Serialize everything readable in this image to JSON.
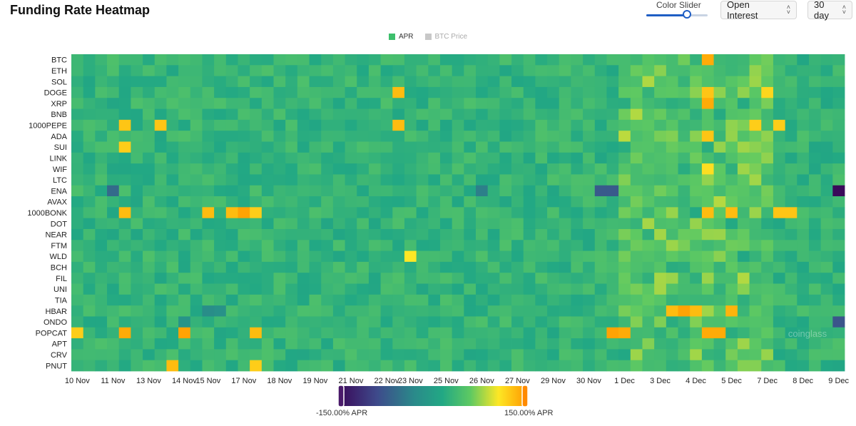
{
  "page": {
    "title": "Funding Rate Heatmap"
  },
  "controls": {
    "color_slider": {
      "label": "Color Slider",
      "value": 0.66
    },
    "metric_select": {
      "value": "Open Interest"
    },
    "period_select": {
      "value": "30 day"
    }
  },
  "legend": {
    "items": [
      {
        "label": "APR",
        "color": "#3dbf6c",
        "active": true
      },
      {
        "label": "BTC Price",
        "color": "#c8c8c8",
        "active": false
      }
    ]
  },
  "colorbar": {
    "min_label": "-150.00% APR",
    "max_label": "150.00% APR",
    "min": -150,
    "max": 150
  },
  "chart_data": {
    "type": "heatmap",
    "title": "Funding Rate Heatmap",
    "value_unit": "% APR",
    "color_scale": [
      "#3a0a5a",
      "#3e4a8b",
      "#2a8a8a",
      "#22a884",
      "#5ec962",
      "#fde725",
      "#ff9a00"
    ],
    "vmin": -150,
    "vmax": 150,
    "rows": [
      "BTC",
      "ETH",
      "SOL",
      "DOGE",
      "XRP",
      "BNB",
      "1000PEPE",
      "ADA",
      "SUI",
      "LINK",
      "WIF",
      "LTC",
      "ENA",
      "AVAX",
      "1000BONK",
      "DOT",
      "NEAR",
      "FTM",
      "WLD",
      "BCH",
      "FIL",
      "UNI",
      "TIA",
      "HBAR",
      "ONDO",
      "POPCAT",
      "APT",
      "CRV",
      "PNUT"
    ],
    "x_tick_labels": [
      "10 Nov",
      "11 Nov",
      "13 Nov",
      "14 Nov",
      "15 Nov",
      "17 Nov",
      "18 Nov",
      "19 Nov",
      "21 Nov",
      "22 Nov",
      "23 Nov",
      "25 Nov",
      "26 Nov",
      "27 Nov",
      "29 Nov",
      "30 Nov",
      "1 Dec",
      "3 Dec",
      "4 Dec",
      "5 Dec",
      "7 Dec",
      "8 Dec",
      "9 Dec"
    ],
    "x_tick_positions": [
      0,
      3,
      6,
      9,
      11,
      14,
      17,
      20,
      23,
      26,
      28,
      31,
      34,
      37,
      40,
      43,
      46,
      49,
      52,
      55,
      58,
      61,
      64
    ],
    "n_columns": 65,
    "base_apr": 30,
    "hotspots": [
      {
        "row": "BTC",
        "col": 53,
        "apr": 140
      },
      {
        "row": "DOGE",
        "col": 27,
        "apr": 130
      },
      {
        "row": "DOGE",
        "col": 53,
        "apr": 125
      },
      {
        "row": "DOGE",
        "col": 58,
        "apr": 115
      },
      {
        "row": "XRP",
        "col": 53,
        "apr": 140
      },
      {
        "row": "1000PEPE",
        "col": 4,
        "apr": 125
      },
      {
        "row": "1000PEPE",
        "col": 7,
        "apr": 125
      },
      {
        "row": "1000PEPE",
        "col": 27,
        "apr": 130
      },
      {
        "row": "1000PEPE",
        "col": 57,
        "apr": 120
      },
      {
        "row": "1000PEPE",
        "col": 59,
        "apr": 120
      },
      {
        "row": "ADA",
        "col": 53,
        "apr": 125
      },
      {
        "row": "SUI",
        "col": 4,
        "apr": 120
      },
      {
        "row": "WIF",
        "col": 53,
        "apr": 110
      },
      {
        "row": "ENA",
        "col": 3,
        "apr": -60
      },
      {
        "row": "ENA",
        "col": 34,
        "apr": -40
      },
      {
        "row": "ENA",
        "col": 44,
        "apr": -75
      },
      {
        "row": "ENA",
        "col": 45,
        "apr": -75
      },
      {
        "row": "ENA",
        "col": 64,
        "apr": -150
      },
      {
        "row": "1000BONK",
        "col": 4,
        "apr": 130
      },
      {
        "row": "1000BONK",
        "col": 11,
        "apr": 130
      },
      {
        "row": "1000BONK",
        "col": 13,
        "apr": 130
      },
      {
        "row": "1000BONK",
        "col": 14,
        "apr": 145
      },
      {
        "row": "1000BONK",
        "col": 15,
        "apr": 120
      },
      {
        "row": "1000BONK",
        "col": 53,
        "apr": 130
      },
      {
        "row": "1000BONK",
        "col": 55,
        "apr": 130
      },
      {
        "row": "1000BONK",
        "col": 59,
        "apr": 125
      },
      {
        "row": "1000BONK",
        "col": 60,
        "apr": 125
      },
      {
        "row": "WLD",
        "col": 28,
        "apr": 105
      },
      {
        "row": "HBAR",
        "col": 11,
        "apr": -25
      },
      {
        "row": "HBAR",
        "col": 12,
        "apr": -20
      },
      {
        "row": "HBAR",
        "col": 50,
        "apr": 130
      },
      {
        "row": "HBAR",
        "col": 51,
        "apr": 145
      },
      {
        "row": "HBAR",
        "col": 52,
        "apr": 130
      },
      {
        "row": "HBAR",
        "col": 55,
        "apr": 135
      },
      {
        "row": "ONDO",
        "col": 9,
        "apr": -15
      },
      {
        "row": "ONDO",
        "col": 64,
        "apr": -80
      },
      {
        "row": "POPCAT",
        "col": 0,
        "apr": 120
      },
      {
        "row": "POPCAT",
        "col": 4,
        "apr": 140
      },
      {
        "row": "POPCAT",
        "col": 9,
        "apr": 145
      },
      {
        "row": "POPCAT",
        "col": 15,
        "apr": 130
      },
      {
        "row": "POPCAT",
        "col": 45,
        "apr": 145
      },
      {
        "row": "POPCAT",
        "col": 46,
        "apr": 140
      },
      {
        "row": "POPCAT",
        "col": 53,
        "apr": 140
      },
      {
        "row": "POPCAT",
        "col": 54,
        "apr": 140
      },
      {
        "row": "PNUT",
        "col": 8,
        "apr": 130
      },
      {
        "row": "PNUT",
        "col": 15,
        "apr": 120
      }
    ]
  },
  "watermark": {
    "text": "coinglass"
  }
}
